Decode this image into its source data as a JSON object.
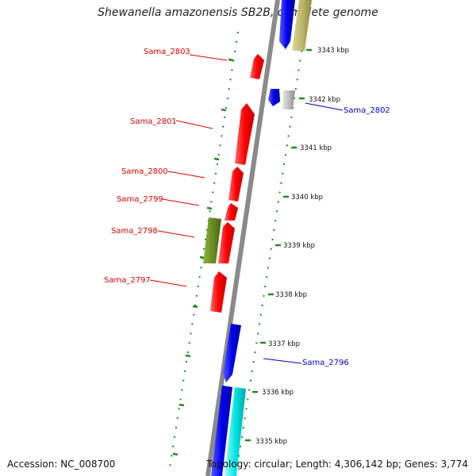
{
  "title": "Shewanella amazonensis SB2B, complete genome",
  "footer": {
    "accession": "Accession: NC_008700",
    "summary": "Topology: circular; Length: 4,306,142 bp; Genes: 3,774"
  },
  "ruler": [
    "3343 kbp",
    "3342 kbp",
    "3341 kbp",
    "3340 kbp",
    "3339 kbp",
    "3338 kbp",
    "3337 kbp",
    "3336 kbp",
    "3335 kbp"
  ],
  "genes": [
    {
      "label": "Sama_2803",
      "color": "#e00000"
    },
    {
      "label": "Sama_2802",
      "color": "#0000cc"
    },
    {
      "label": "Sama_2801",
      "color": "#e00000"
    },
    {
      "label": "Sama_2800",
      "color": "#e00000"
    },
    {
      "label": "Sama_2799",
      "color": "#e00000"
    },
    {
      "label": "Sama_2798",
      "color": "#e00000"
    },
    {
      "label": "Sama_2797",
      "color": "#e00000"
    },
    {
      "label": "Sama_2796",
      "color": "#0000cc"
    }
  ],
  "colors": {
    "reverse_label": "#e00000",
    "forward_label": "#0000cc",
    "backbone": "#808080",
    "dotted_track": "#228b22",
    "forward_gene": "#0000ee",
    "reverse_gene": "#ff1a1a",
    "olive_gene": "#6b8e23",
    "khaki_gene": "#bdb76b",
    "grey_gene": "#b8b8b8",
    "cyan_gene": "#00e5e5"
  }
}
